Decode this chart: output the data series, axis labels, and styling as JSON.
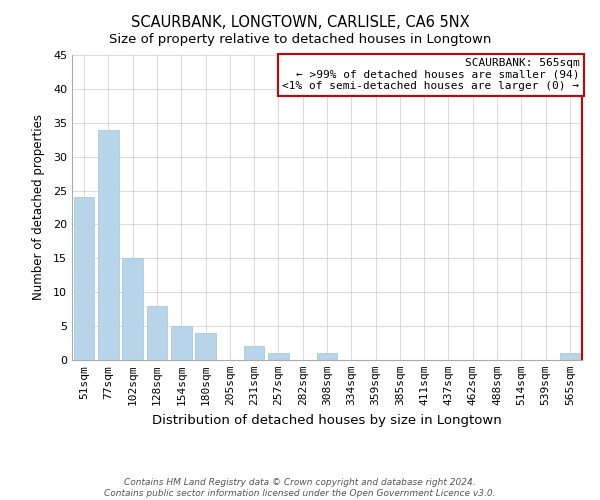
{
  "title": "SCAURBANK, LONGTOWN, CARLISLE, CA6 5NX",
  "subtitle": "Size of property relative to detached houses in Longtown",
  "xlabel": "Distribution of detached houses by size in Longtown",
  "ylabel": "Number of detached properties",
  "bar_color": "#b8d4e8",
  "bar_edgecolor": "#a0c4de",
  "categories": [
    "51sqm",
    "77sqm",
    "102sqm",
    "128sqm",
    "154sqm",
    "180sqm",
    "205sqm",
    "231sqm",
    "257sqm",
    "282sqm",
    "308sqm",
    "334sqm",
    "359sqm",
    "385sqm",
    "411sqm",
    "437sqm",
    "462sqm",
    "488sqm",
    "514sqm",
    "539sqm",
    "565sqm"
  ],
  "values": [
    24,
    34,
    15,
    8,
    5,
    4,
    0,
    2,
    1,
    0,
    1,
    0,
    0,
    0,
    0,
    0,
    0,
    0,
    0,
    0,
    1
  ],
  "ylim": [
    0,
    45
  ],
  "yticks": [
    0,
    5,
    10,
    15,
    20,
    25,
    30,
    35,
    40,
    45
  ],
  "annotation_title": "SCAURBANK: 565sqm",
  "annotation_line1": "← >99% of detached houses are smaller (94)",
  "annotation_line2": "<1% of semi-detached houses are larger (0) →",
  "annotation_box_edgecolor": "#cc0000",
  "footer_line1": "Contains HM Land Registry data © Crown copyright and database right 2024.",
  "footer_line2": "Contains public sector information licensed under the Open Government Licence v3.0.",
  "background_color": "#ffffff",
  "grid_color": "#cccccc",
  "title_fontsize": 10.5,
  "subtitle_fontsize": 9.5,
  "xlabel_fontsize": 9.5,
  "ylabel_fontsize": 8.5,
  "tick_fontsize": 8,
  "annotation_fontsize": 8,
  "footer_fontsize": 6.5,
  "right_border_color": "#cc0000"
}
